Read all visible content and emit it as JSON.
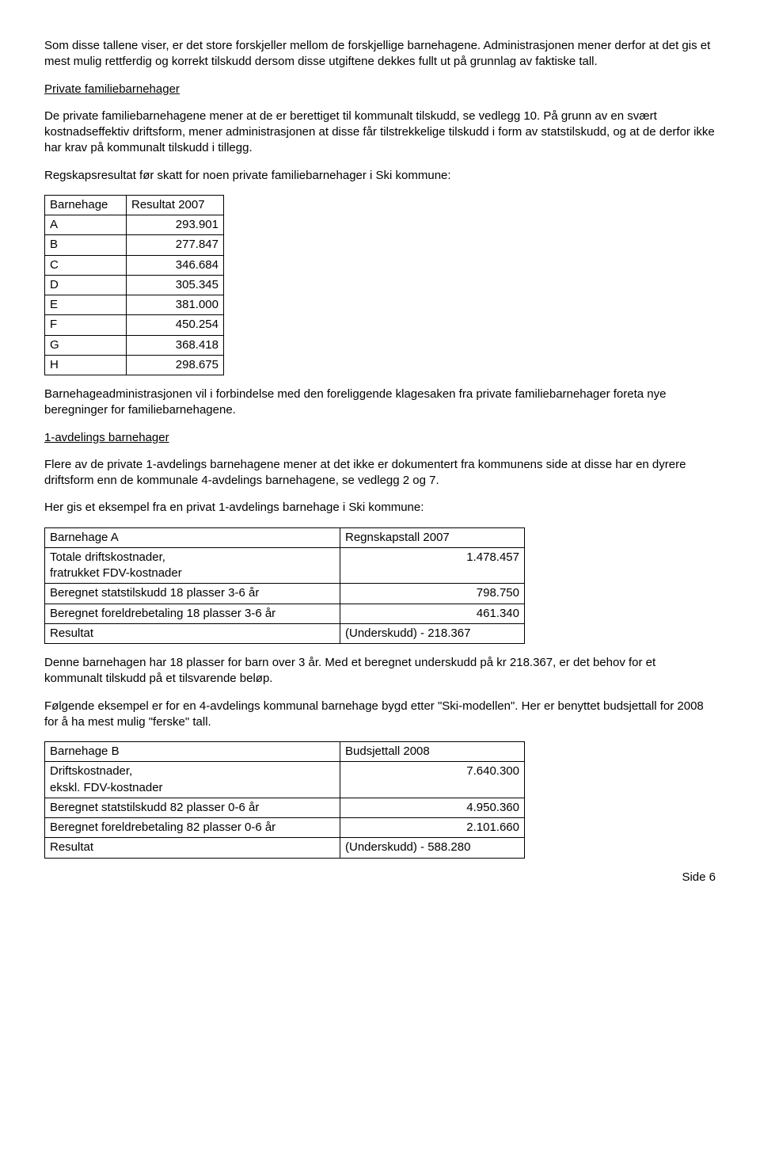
{
  "paragraphs": {
    "p1": "Som disse tallene viser, er det store forskjeller mellom de forskjellige barnehagene. Administrasjonen mener derfor at det gis et mest mulig rettferdig og korrekt tilskudd dersom disse utgiftene dekkes fullt ut på grunnlag av faktiske tall.",
    "h1": "Private familiebarnehager",
    "p2": "De private familiebarnehagene mener at de er berettiget til kommunalt tilskudd, se vedlegg 10.  På grunn av en svært kostnadseffektiv driftsform, mener administrasjonen at disse får tilstrekkelige tilskudd i form av statstilskudd, og at de derfor ikke har krav på kommunalt tilskudd i tillegg.",
    "p3": "Regskapsresultat før skatt for noen private familiebarnehager i Ski kommune:",
    "p4": "Barnehageadministrasjonen vil i forbindelse med den foreliggende klagesaken fra private familiebarnehager foreta nye beregninger for familiebarnehagene.",
    "h2": "1-avdelings barnehager",
    "p5": "Flere av de private 1-avdelings barnehagene mener at det ikke er dokumentert fra kommunens side at disse har en dyrere driftsform enn de kommunale 4-avdelings barnehagene, se vedlegg 2 og 7.",
    "p6": "Her gis et eksempel fra en privat 1-avdelings barnehage i Ski kommune:",
    "p7": "Denne barnehagen har 18 plasser for barn over 3 år.  Med et beregnet underskudd på kr 218.367, er det behov for et kommunalt tilskudd på et tilsvarende beløp.",
    "p8": "Følgende eksempel er for en 4-avdelings kommunal barnehage bygd etter \"Ski-modellen\". Her er benyttet budsjettall for 2008 for å ha mest mulig \"ferske\" tall.",
    "pagenum": "Side 6"
  },
  "table1": {
    "header": [
      "Barnehage",
      "Resultat 2007"
    ],
    "rows": [
      [
        "A",
        "293.901"
      ],
      [
        "B",
        "277.847"
      ],
      [
        "C",
        "346.684"
      ],
      [
        "D",
        "305.345"
      ],
      [
        "E",
        "381.000"
      ],
      [
        "F",
        "450.254"
      ],
      [
        "G",
        "368.418"
      ],
      [
        "H",
        "298.675"
      ]
    ]
  },
  "table2": {
    "rows": [
      [
        "Barnehage A",
        "Regnskapstall 2007"
      ],
      [
        "Totale driftskostnader,\nfratrukket FDV-kostnader",
        "1.478.457"
      ],
      [
        "Beregnet statstilskudd 18 plasser 3-6 år",
        "798.750"
      ],
      [
        "Beregnet foreldrebetaling 18 plasser 3-6 år",
        "461.340"
      ],
      [
        "Resultat",
        "(Underskudd) - 218.367"
      ]
    ]
  },
  "table3": {
    "rows": [
      [
        "Barnehage B",
        "Budsjettall 2008"
      ],
      [
        "Driftskostnader,\nekskl. FDV-kostnader",
        "7.640.300"
      ],
      [
        "Beregnet statstilskudd 82 plasser 0-6 år",
        "4.950.360"
      ],
      [
        "Beregnet foreldrebetaling 82 plasser 0-6 år",
        "2.101.660"
      ],
      [
        "Resultat",
        "(Underskudd) - 588.280"
      ]
    ]
  }
}
